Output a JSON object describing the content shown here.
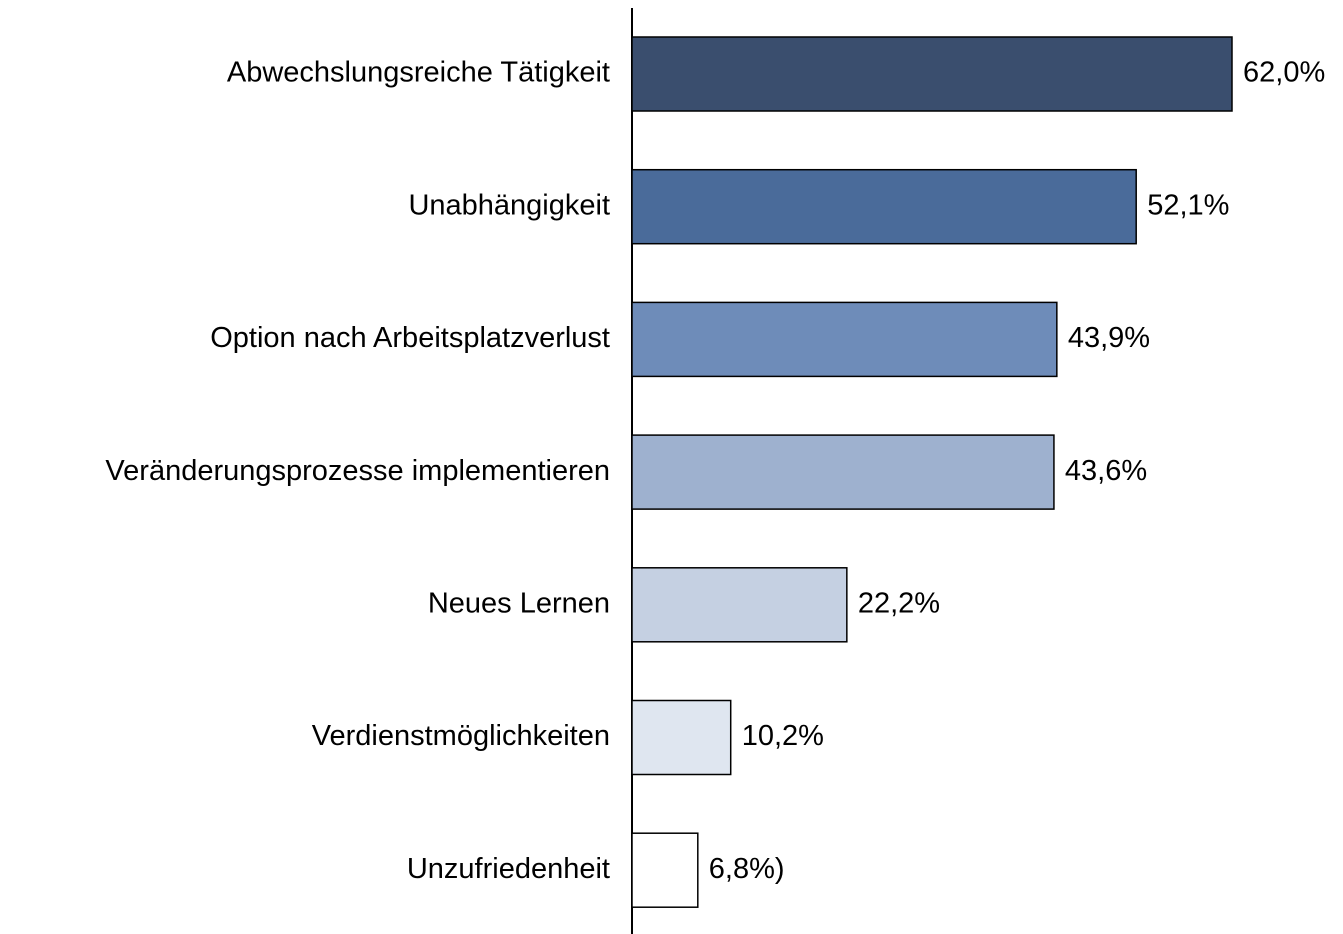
{
  "chart_data": {
    "type": "hbar",
    "categories": [
      "Abwechslungsreiche Tätigkeit",
      "Unabhängigkeit",
      "Option nach Arbeitsplatzverlust",
      "Veränderungsprozesse implementieren",
      "Neues Lernen",
      "Verdienstmöglichkeiten",
      "Unzufriedenheit"
    ],
    "values": [
      62.0,
      52.1,
      43.9,
      43.6,
      22.2,
      10.2,
      6.8
    ],
    "value_labels": [
      "62,0%",
      "52,1%",
      "43,9%",
      "43,6%",
      "22,2%",
      "10,2%",
      "6,8%)"
    ],
    "colors": [
      "#3a4e6e",
      "#4a6b9a",
      "#6e8cb9",
      "#9eb1cf",
      "#c5d0e2",
      "#dfe6f0",
      "#ffffff"
    ]
  }
}
